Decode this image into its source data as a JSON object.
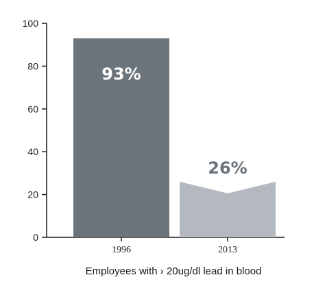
{
  "chart_data": {
    "type": "bar",
    "categories": [
      "1996",
      "2013"
    ],
    "values": [
      93,
      26
    ],
    "value_labels": [
      "93%",
      "26%"
    ],
    "xlabel": "Employees with › 20ug/dl lead in blood",
    "ylabel": "",
    "title": "",
    "ylim": [
      0,
      100
    ],
    "yticks": [
      "0",
      "20",
      "40",
      "60",
      "80",
      "100"
    ],
    "grid": false,
    "legend": "none",
    "colors": {
      "bars": [
        "#6b747b",
        "#b4b9bf"
      ],
      "value_labels": [
        "#ffffff",
        "#6b747b"
      ],
      "axis": "#1a1a1a"
    }
  }
}
